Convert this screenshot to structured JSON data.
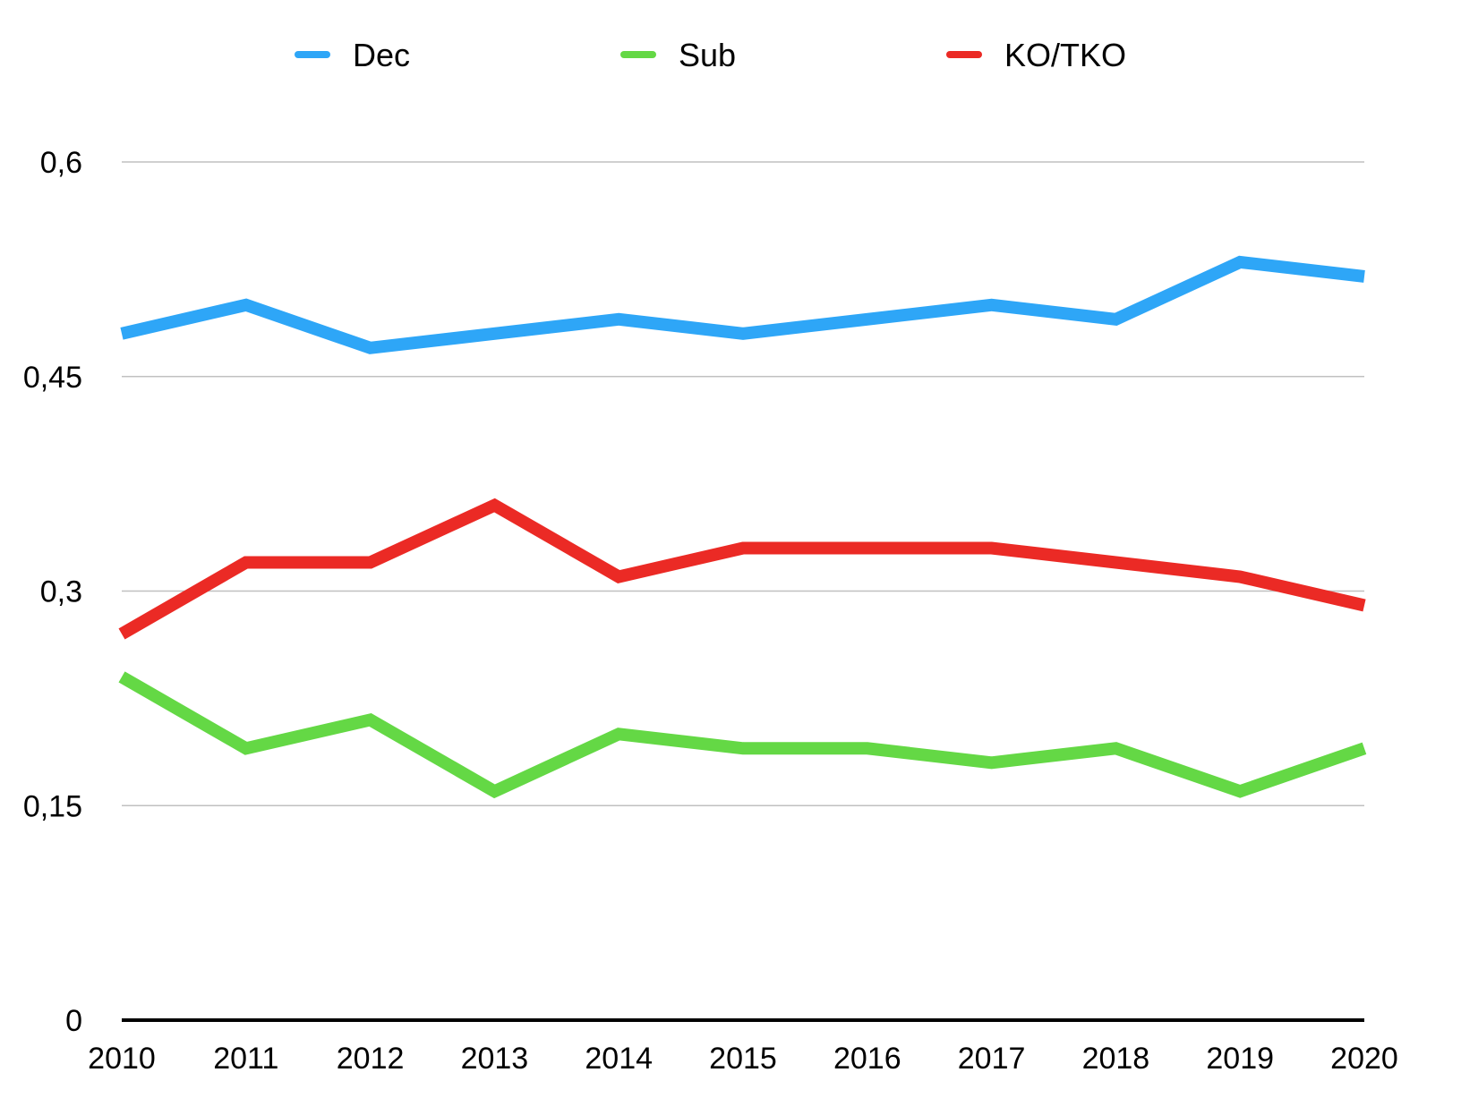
{
  "chart_data": {
    "type": "line",
    "title": "",
    "xlabel": "",
    "ylabel": "",
    "x": [
      "2010",
      "2011",
      "2012",
      "2013",
      "2014",
      "2015",
      "2016",
      "2017",
      "2018",
      "2019",
      "2020"
    ],
    "ylim": [
      0,
      0.6
    ],
    "yticks": [
      0,
      0.15,
      0.3,
      0.45,
      0.6
    ],
    "ytick_labels": [
      "0",
      "0,15",
      "0,3",
      "0,45",
      "0,6"
    ],
    "grid": true,
    "legend_position": "top",
    "series": [
      {
        "name": "Dec",
        "color": "#2ea6f7",
        "values": [
          0.48,
          0.5,
          0.47,
          0.48,
          0.49,
          0.48,
          0.49,
          0.5,
          0.49,
          0.53,
          0.52
        ]
      },
      {
        "name": "Sub",
        "color": "#64d845",
        "values": [
          0.24,
          0.19,
          0.21,
          0.16,
          0.2,
          0.19,
          0.19,
          0.18,
          0.19,
          0.16,
          0.19
        ]
      },
      {
        "name": "KO/TKO",
        "color": "#eb2a25",
        "values": [
          0.27,
          0.32,
          0.32,
          0.36,
          0.31,
          0.33,
          0.33,
          0.33,
          0.32,
          0.31,
          0.29
        ]
      }
    ]
  }
}
